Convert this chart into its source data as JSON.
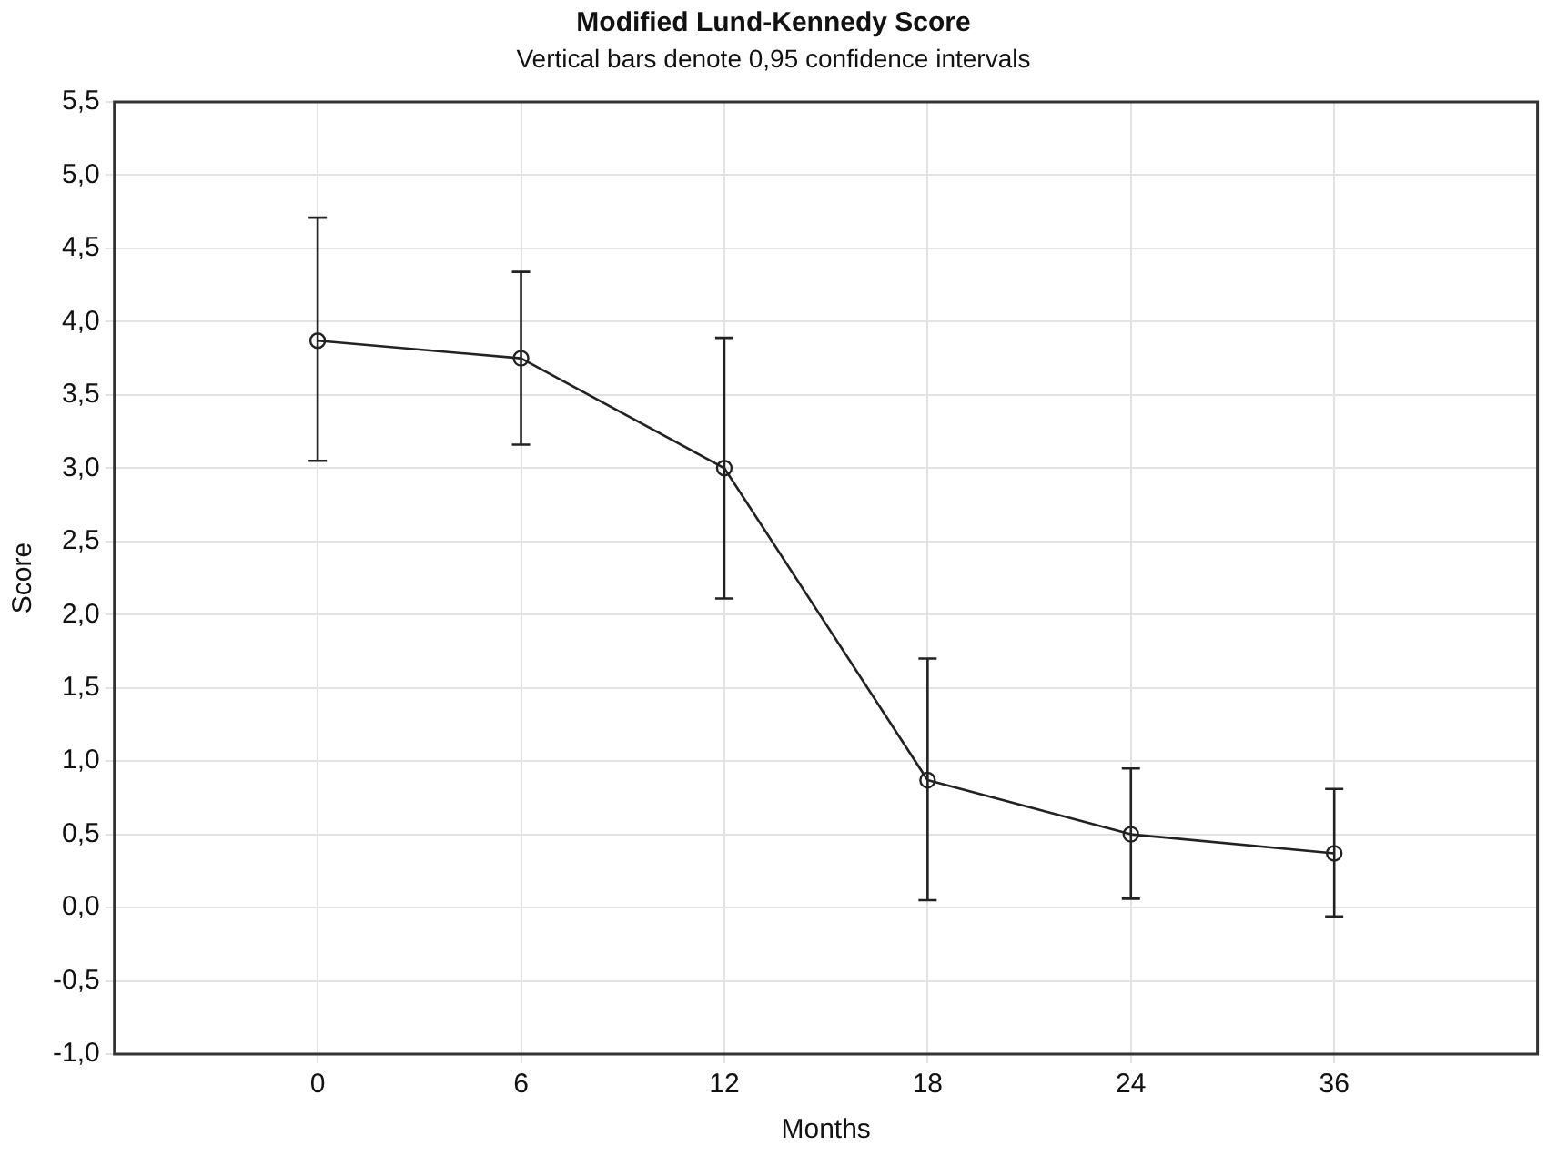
{
  "chart_data": {
    "type": "line",
    "title": "Modified Lund-Kennedy Score",
    "subtitle": "Vertical bars denote 0,95 confidence intervals",
    "xlabel": "Months",
    "ylabel": "Score",
    "categories": [
      "0",
      "6",
      "12",
      "18",
      "24",
      "36"
    ],
    "series": [
      {
        "color": "#222222",
        "values": [
          3.87,
          3.75,
          3.0,
          0.87,
          0.5,
          0.37
        ],
        "errors": [
          [
            3.05,
            4.71
          ],
          [
            3.16,
            4.34
          ],
          [
            2.11,
            3.89
          ],
          [
            0.05,
            1.7
          ],
          [
            0.06,
            0.95
          ],
          [
            -0.06,
            0.81
          ]
        ]
      }
    ],
    "ylim": [
      -1,
      5.5
    ],
    "yticks": [
      {
        "value": -1,
        "label": "-1,0"
      },
      {
        "value": -0.5,
        "label": "-0,5"
      },
      {
        "value": 0,
        "label": "0,0"
      },
      {
        "value": 0.5,
        "label": "0,5"
      },
      {
        "value": 1,
        "label": "1,0"
      },
      {
        "value": 1.5,
        "label": "1,5"
      },
      {
        "value": 2,
        "label": "2,0"
      },
      {
        "value": 2.5,
        "label": "2,5"
      },
      {
        "value": 3,
        "label": "3,0"
      },
      {
        "value": 3.5,
        "label": "3,5"
      },
      {
        "value": 4,
        "label": "4,0"
      },
      {
        "value": 4.5,
        "label": "4,5"
      },
      {
        "value": 5,
        "label": "5,0"
      },
      {
        "value": 5.5,
        "label": "5,5"
      }
    ],
    "grid": true,
    "legend": false,
    "marker": "circle",
    "line_style": "solid"
  }
}
